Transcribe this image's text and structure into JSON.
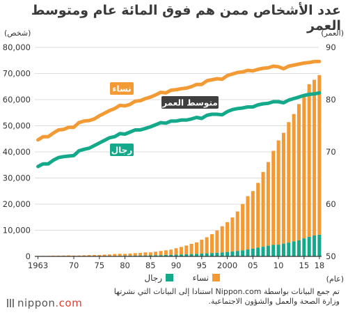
{
  "title": "عدد الأشخاص ممن هم فوق المائة عام ومتوسط العمر",
  "source": "تم جمع البيانات بواسطة Nippon.com استنادا إلى البيانات التي نشرتها وزارة الصحة والعمل والشؤون الاجتماعية.",
  "brand": {
    "name": "nippon",
    "suffix": ".com"
  },
  "chart_data": {
    "type": "bar",
    "left_axis": {
      "unit": "(شخص)",
      "ticks": [
        "0",
        "10,000",
        "20,000",
        "30,000",
        "40,000",
        "50,000",
        "60,000",
        "70,000",
        "80,000"
      ],
      "ylim": [
        0,
        80000
      ]
    },
    "right_axis": {
      "unit": "(العمر)",
      "ticks": [
        "50",
        "60",
        "70",
        "80",
        "90"
      ],
      "ylim": [
        50,
        90
      ]
    },
    "x_unit": "(عام)",
    "x_tick_labels": [
      "1963",
      "70",
      "75",
      "80",
      "85",
      "90",
      "95",
      "2000",
      "05",
      "10",
      "15",
      "18"
    ],
    "years": [
      1963,
      1964,
      1965,
      1966,
      1967,
      1968,
      1969,
      1970,
      1971,
      1972,
      1973,
      1974,
      1975,
      1976,
      1977,
      1978,
      1979,
      1980,
      1981,
      1982,
      1983,
      1984,
      1985,
      1986,
      1987,
      1988,
      1989,
      1990,
      1991,
      1992,
      1993,
      1994,
      1995,
      1996,
      1997,
      1998,
      1999,
      2000,
      2001,
      2002,
      2003,
      2004,
      2005,
      2006,
      2007,
      2008,
      2009,
      2010,
      2011,
      2012,
      2013,
      2014,
      2015,
      2016,
      2017,
      2018
    ],
    "bars_stacked": [
      {
        "name": "رجال",
        "color": "#14a98b",
        "values": [
          20,
          25,
          30,
          35,
          40,
          50,
          60,
          70,
          80,
          90,
          100,
          110,
          120,
          140,
          160,
          180,
          200,
          230,
          260,
          290,
          320,
          360,
          400,
          450,
          500,
          560,
          620,
          680,
          750,
          820,
          900,
          990,
          1080,
          1180,
          1290,
          1400,
          1530,
          1700,
          1900,
          2100,
          2350,
          2650,
          3000,
          3350,
          3700,
          4100,
          4400,
          4500,
          4900,
          5300,
          5800,
          6200,
          6900,
          7500,
          8000,
          8300
        ]
      },
      {
        "name": "نساء",
        "color": "#f39a34",
        "values": [
          133,
          166,
          170,
          217,
          228,
          270,
          333,
          240,
          260,
          320,
          400,
          450,
          430,
          520,
          600,
          740,
          800,
          740,
          840,
          950,
          1040,
          1160,
          1130,
          1340,
          1580,
          1760,
          1990,
          2440,
          2870,
          3330,
          3900,
          4370,
          5300,
          6160,
          7200,
          8500,
          10000,
          11400,
          13000,
          15100,
          17700,
          20400,
          22000,
          24800,
          28600,
          32000,
          36000,
          39900,
          42400,
          46100,
          48700,
          52100,
          54300,
          58400,
          59600,
          61100
        ]
      }
    ],
    "lines": [
      {
        "name": "نساء",
        "color": "#f39a34",
        "values": [
          72.3,
          72.9,
          72.9,
          73.6,
          74.2,
          74.3,
          74.7,
          74.7,
          75.6,
          75.9,
          76.0,
          76.3,
          76.9,
          77.4,
          77.9,
          78.3,
          78.9,
          78.8,
          79.1,
          79.7,
          79.8,
          80.2,
          80.5,
          80.9,
          81.4,
          81.3,
          81.8,
          81.9,
          82.1,
          82.2,
          82.5,
          82.9,
          82.9,
          83.6,
          83.8,
          84.0,
          83.9,
          84.6,
          84.9,
          85.2,
          85.3,
          85.6,
          85.5,
          85.8,
          86.0,
          86.1,
          86.4,
          86.3,
          85.9,
          86.4,
          86.6,
          86.8,
          87.0,
          87.1,
          87.3,
          87.3
        ]
      },
      {
        "name": "رجال",
        "color": "#14a98b",
        "values": [
          67.2,
          67.7,
          67.7,
          68.4,
          68.9,
          69.1,
          69.2,
          69.3,
          70.2,
          70.5,
          70.7,
          71.2,
          71.7,
          72.2,
          72.7,
          72.9,
          73.5,
          73.4,
          73.8,
          74.2,
          74.2,
          74.5,
          74.8,
          75.2,
          75.6,
          75.5,
          75.9,
          75.9,
          76.1,
          76.1,
          76.3,
          76.6,
          76.4,
          77.0,
          77.2,
          77.2,
          77.1,
          77.7,
          78.1,
          78.3,
          78.4,
          78.6,
          78.6,
          79.0,
          79.2,
          79.3,
          79.6,
          79.6,
          79.4,
          79.9,
          80.2,
          80.5,
          80.8,
          81.0,
          81.1,
          81.3
        ]
      }
    ],
    "line_labels": [
      {
        "text": "نساء",
        "color": "#f39a34"
      },
      {
        "text": "رجال",
        "color": "#14a98b"
      },
      {
        "text": "متوسط العمر",
        "color": "#3f3f3f"
      }
    ],
    "legend": [
      {
        "label": "نساء",
        "color": "#f39a34"
      },
      {
        "label": "رجال",
        "color": "#14a98b"
      }
    ],
    "grid": true
  }
}
